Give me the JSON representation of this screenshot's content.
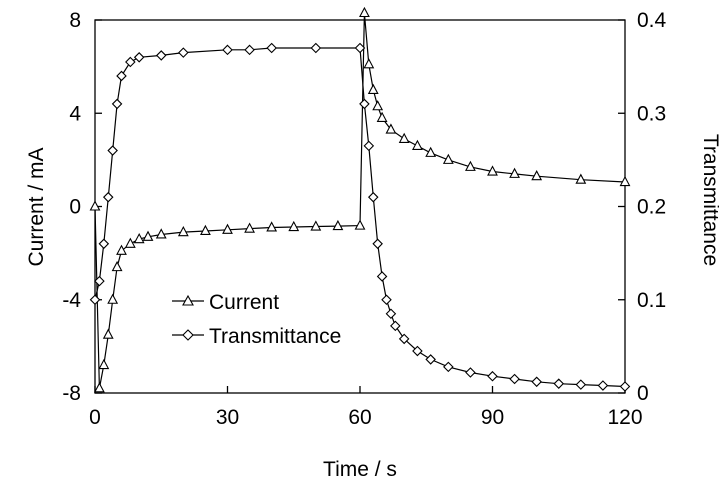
{
  "chart_data": {
    "type": "line",
    "xlabel": "Time / s",
    "ylabel_left": "Current / mA",
    "ylabel_right": "Transmittance",
    "xlim": [
      0,
      120
    ],
    "ylim_left": [
      -8,
      8
    ],
    "ylim_right": [
      0,
      0.4
    ],
    "x_ticks": [
      "0",
      "30",
      "60",
      "90",
      "120"
    ],
    "y_left_ticks": [
      "-8",
      "-4",
      "0",
      "4",
      "8"
    ],
    "y_right_ticks": [
      "0",
      "0.1",
      "0.2",
      "0.3",
      "0.4"
    ],
    "legend_position": "lower-left",
    "series": [
      {
        "name": "Current",
        "axis": "left",
        "marker": "triangle",
        "x": [
          0,
          1,
          2,
          3,
          4,
          5,
          6,
          8,
          10,
          12,
          15,
          20,
          25,
          30,
          35,
          40,
          45,
          50,
          55,
          60,
          61,
          62,
          63,
          64,
          65,
          67,
          70,
          73,
          76,
          80,
          85,
          90,
          95,
          100,
          110,
          120
        ],
        "values": [
          0.0,
          -7.8,
          -6.8,
          -5.5,
          -4.0,
          -2.6,
          -1.9,
          -1.6,
          -1.4,
          -1.3,
          -1.2,
          -1.1,
          -1.05,
          -1.0,
          -0.95,
          -0.9,
          -0.88,
          -0.86,
          -0.84,
          -0.82,
          8.3,
          6.1,
          5.0,
          4.3,
          3.8,
          3.3,
          2.9,
          2.6,
          2.3,
          2.0,
          1.7,
          1.5,
          1.4,
          1.3,
          1.15,
          1.05
        ]
      },
      {
        "name": "Transmittance",
        "axis": "right",
        "marker": "diamond",
        "x": [
          0,
          1,
          2,
          3,
          4,
          5,
          6,
          8,
          10,
          15,
          20,
          30,
          35,
          40,
          50,
          60,
          61,
          62,
          63,
          64,
          65,
          66,
          67,
          68,
          70,
          73,
          76,
          80,
          85,
          90,
          95,
          100,
          105,
          110,
          115,
          120
        ],
        "values": [
          0.1,
          0.12,
          0.16,
          0.21,
          0.26,
          0.31,
          0.34,
          0.355,
          0.36,
          0.362,
          0.365,
          0.368,
          0.368,
          0.37,
          0.37,
          0.37,
          0.31,
          0.265,
          0.21,
          0.16,
          0.125,
          0.1,
          0.085,
          0.072,
          0.058,
          0.045,
          0.036,
          0.028,
          0.022,
          0.018,
          0.015,
          0.012,
          0.01,
          0.009,
          0.008,
          0.007
        ]
      }
    ]
  }
}
